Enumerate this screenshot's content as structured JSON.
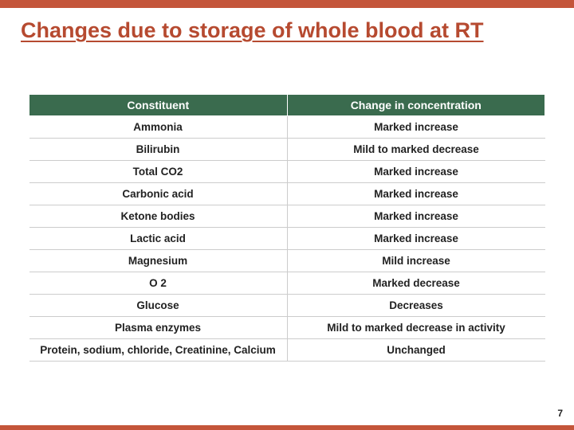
{
  "accent_color": "#c4553a",
  "title_color": "#b64a30",
  "header_bg": "#3a6b4e",
  "title": "Changes due to storage of whole blood at RT",
  "page_number": "7",
  "table": {
    "columns": [
      "Constituent",
      "Change in concentration"
    ],
    "col_widths": [
      "50%",
      "50%"
    ],
    "rows": [
      [
        "Ammonia",
        "Marked increase"
      ],
      [
        "Bilirubin",
        "Mild to marked decrease"
      ],
      [
        "Total CO2",
        "Marked increase"
      ],
      [
        "Carbonic acid",
        "Marked increase"
      ],
      [
        "Ketone bodies",
        "Marked increase"
      ],
      [
        "Lactic acid",
        "Marked increase"
      ],
      [
        "Magnesium",
        "Mild increase"
      ],
      [
        "O 2",
        "Marked decrease"
      ],
      [
        "Glucose",
        "Decreases"
      ],
      [
        "Plasma enzymes",
        "Mild to marked decrease in activity"
      ],
      [
        "Protein, sodium, chloride, Creatinine, Calcium",
        "Unchanged"
      ]
    ]
  }
}
